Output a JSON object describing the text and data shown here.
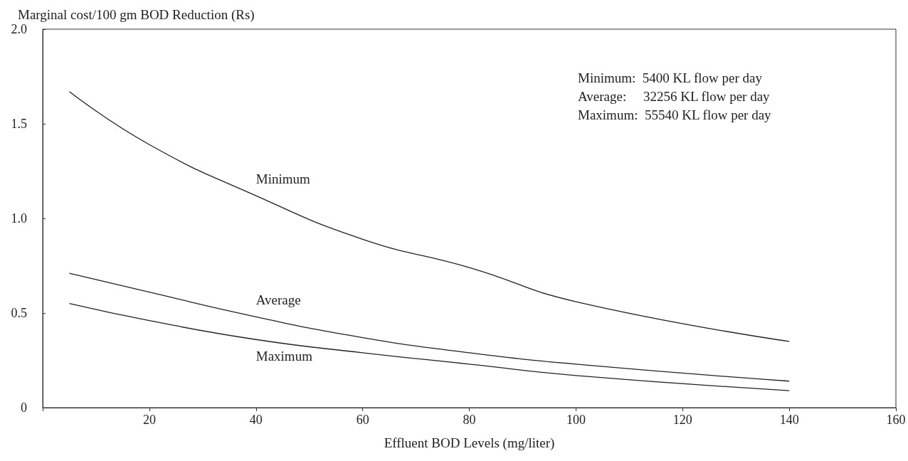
{
  "chart_data": {
    "type": "line",
    "xlabel": "Effluent BOD Levels (mg/liter)",
    "ylabel": "Marginal cost/100 gm BOD Reduction (Rs)",
    "x": [
      5,
      20,
      40,
      60,
      80,
      100,
      140
    ],
    "series": [
      {
        "name": "Minimum",
        "color": "#222222",
        "values": [
          1.67,
          1.39,
          1.12,
          0.89,
          0.74,
          0.56,
          0.35
        ]
      },
      {
        "name": "Average",
        "color": "#222222",
        "values": [
          0.71,
          0.61,
          0.48,
          0.37,
          0.29,
          0.23,
          0.14
        ]
      },
      {
        "name": "Maximum",
        "color": "#222222",
        "values": [
          0.55,
          0.46,
          0.36,
          0.29,
          0.23,
          0.17,
          0.09
        ]
      }
    ],
    "xlim": [
      0,
      160
    ],
    "xticks": [
      {
        "value": 0,
        "label": null
      },
      20,
      40,
      60,
      80,
      100,
      120,
      140,
      160
    ],
    "ylim": [
      0,
      2
    ],
    "yticks": [
      0,
      0.5,
      {
        "value": 1,
        "label": "1.0"
      },
      1.5,
      {
        "value": 2,
        "label": "2.0"
      }
    ],
    "annotations": [
      "Minimum:  5400 KL flow per day",
      "Average:     32256 KL flow per day",
      "Maximum:  55540 KL flow per day"
    ],
    "grid": false,
    "legend": false,
    "marker": "none",
    "line_style": "solid"
  }
}
